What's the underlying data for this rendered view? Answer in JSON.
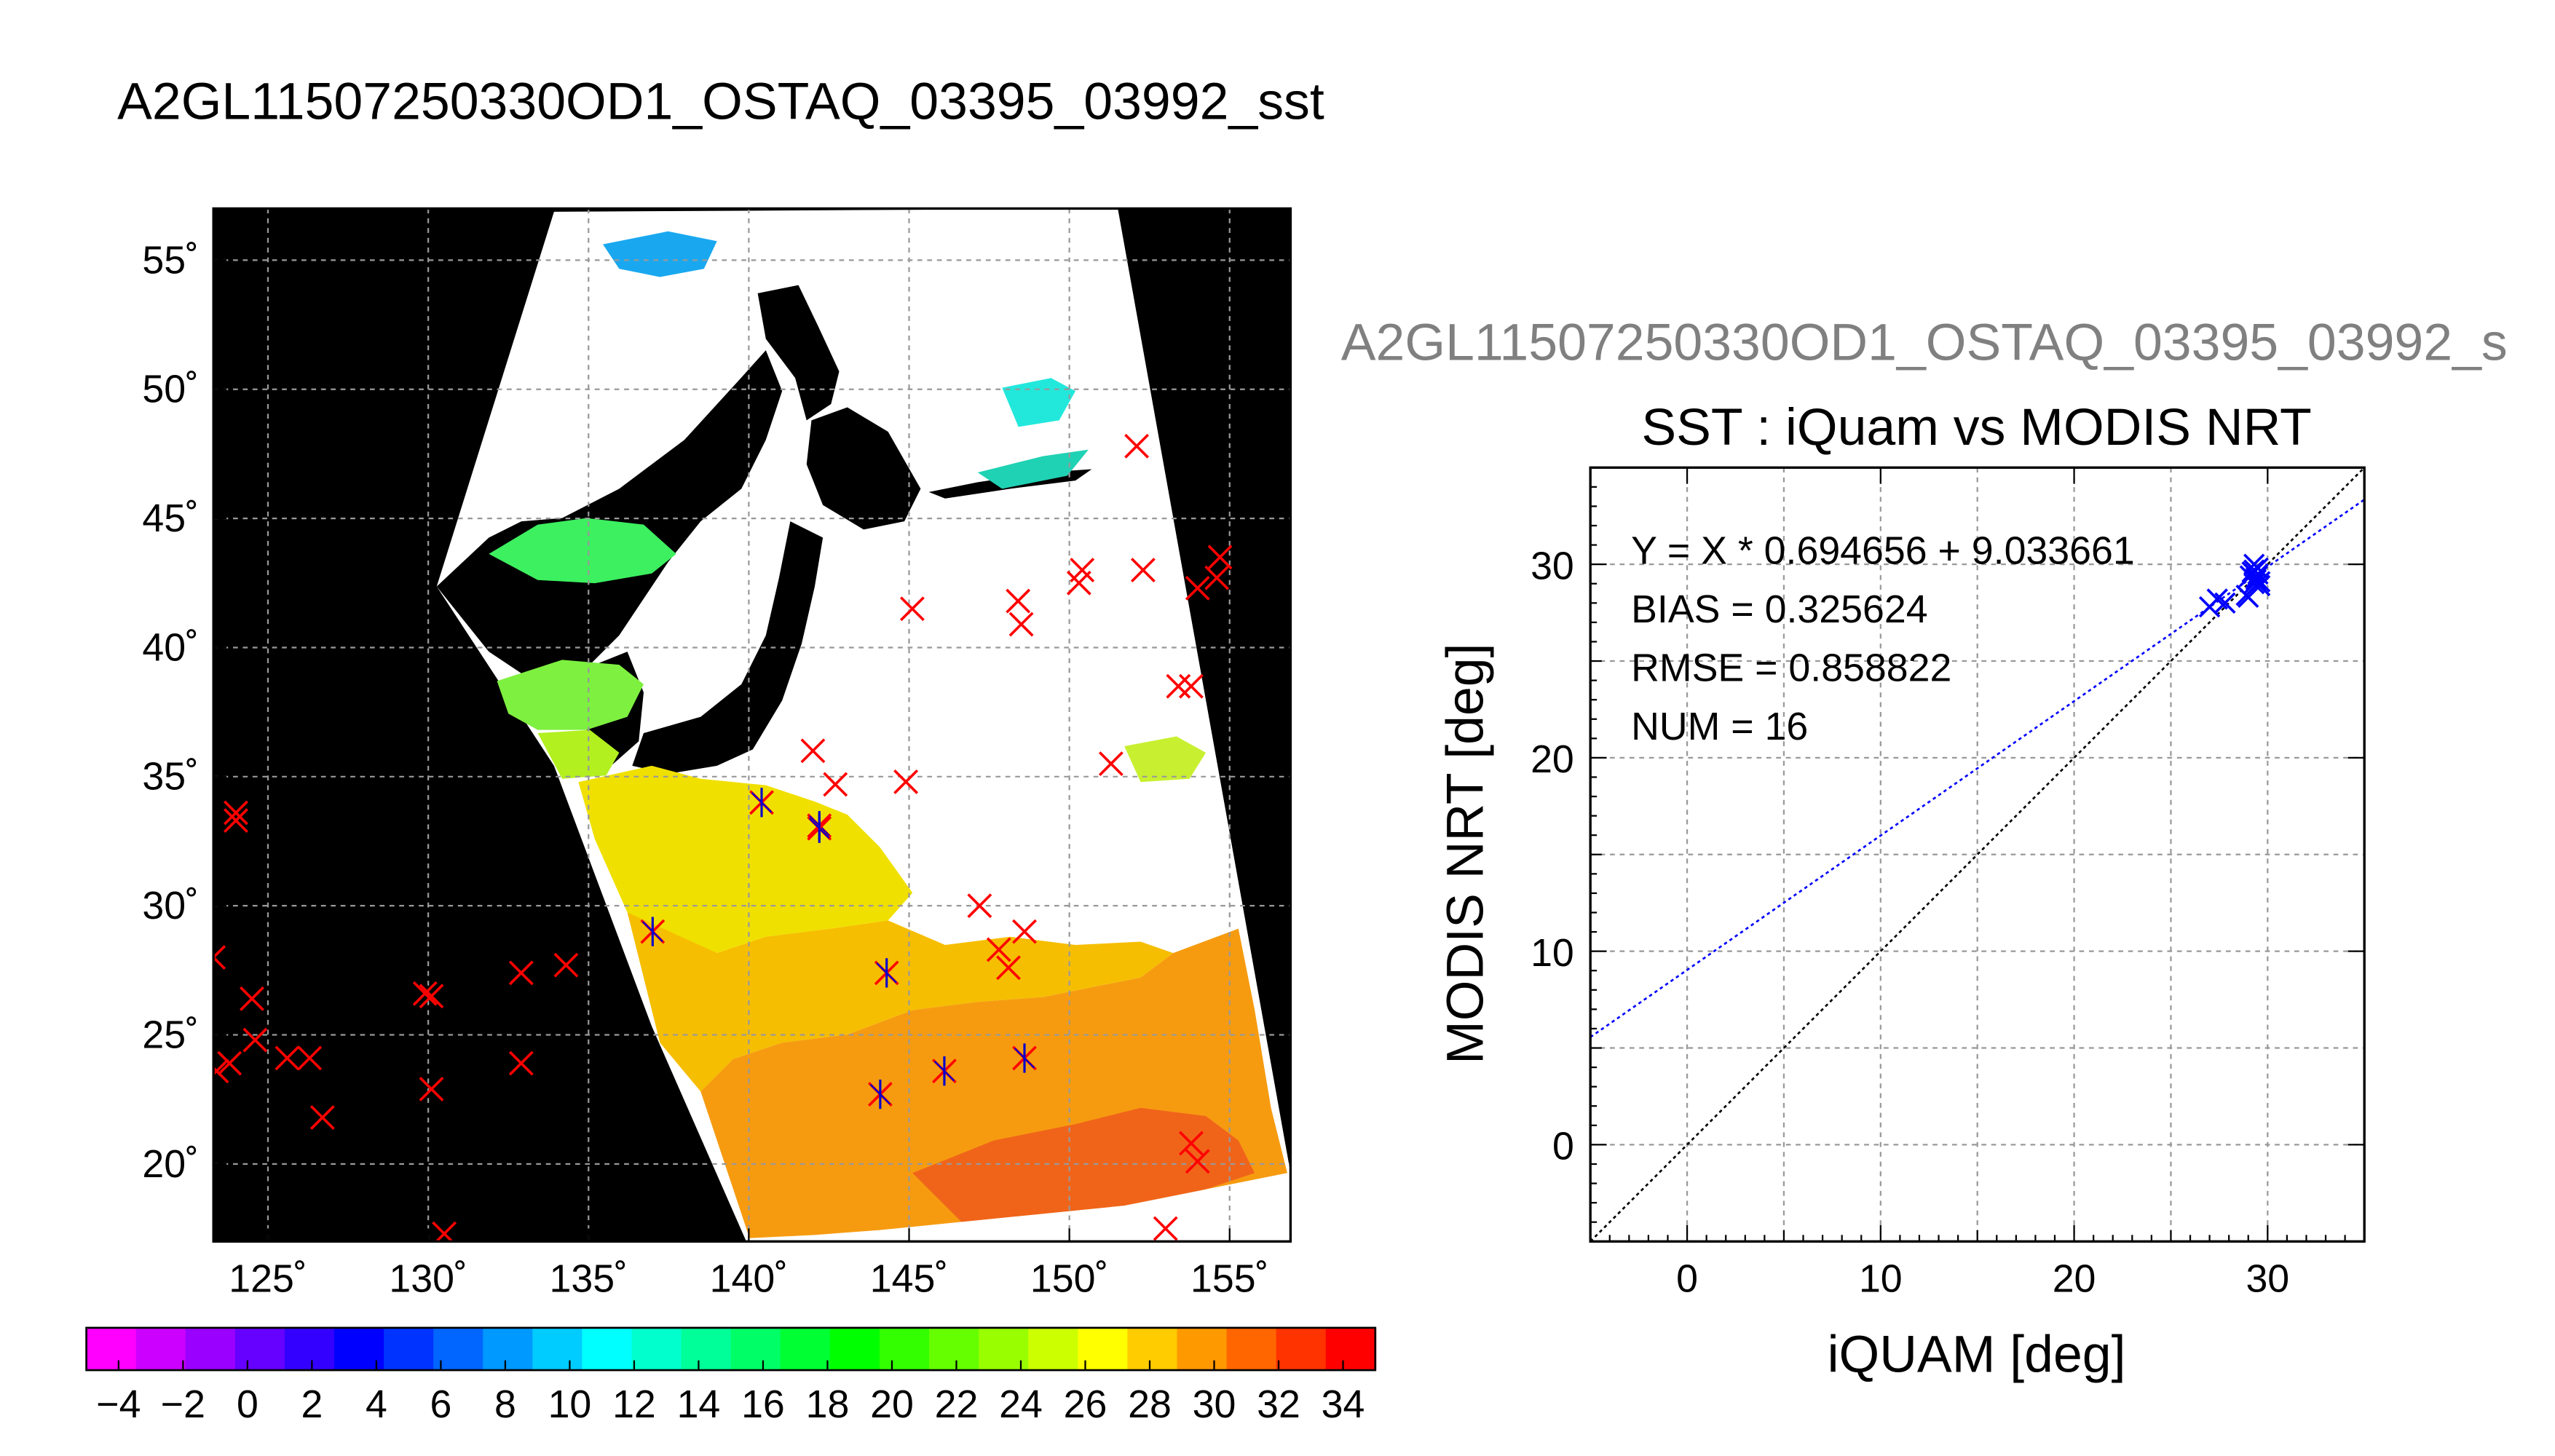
{
  "main_title": "A2GL11507250330OD1_OSTAQ_03395_03992_sst",
  "sub_title": "A2GL11507250330OD1_OSTAQ_03395_03992_s",
  "chart_data": [
    {
      "type": "map",
      "lon_ticks": [
        "125˚",
        "130˚",
        "135˚",
        "140˚",
        "145˚",
        "150˚",
        "155˚"
      ],
      "lon_values": [
        125,
        130,
        135,
        140,
        145,
        150,
        155
      ],
      "lat_ticks": [
        "55˚",
        "50˚",
        "45˚",
        "40˚",
        "35˚",
        "30˚",
        "25˚",
        "20˚"
      ],
      "lat_values": [
        55,
        50,
        45,
        40,
        35,
        30,
        25,
        20
      ],
      "xlim": [
        123.3,
        156.9
      ],
      "ylim": [
        17.0,
        57.0
      ],
      "land_color": "#000000",
      "no_data_color": "#ffffff",
      "grid": true,
      "colorbar": {
        "ticks": [
          "−4",
          "−2",
          "0",
          "2",
          "4",
          "6",
          "8",
          "10",
          "12",
          "14",
          "16",
          "18",
          "20",
          "22",
          "24",
          "26",
          "28",
          "30",
          "32",
          "34"
        ],
        "tick_values": [
          -4,
          -2,
          0,
          2,
          4,
          6,
          8,
          10,
          12,
          14,
          16,
          18,
          20,
          22,
          24,
          26,
          28,
          30,
          32,
          34
        ],
        "range": [
          -5,
          35
        ],
        "colors": [
          "#ff00ff",
          "#cc00ff",
          "#9900ff",
          "#6600ff",
          "#3300ff",
          "#0000ff",
          "#0033ff",
          "#0066ff",
          "#0099ff",
          "#00ccff",
          "#00ffff",
          "#00ffcc",
          "#00ff99",
          "#00ff66",
          "#00ff33",
          "#00ff00",
          "#33ff00",
          "#66ff00",
          "#99ff00",
          "#ccff00",
          "#ffff00",
          "#ffcc00",
          "#ff9900",
          "#ff6600",
          "#ff3300",
          "#ff0000"
        ]
      },
      "buoys_red": [
        [
          123.3,
          28.0
        ],
        [
          123.4,
          23.6
        ],
        [
          123.8,
          23.9
        ],
        [
          124.0,
          33.6
        ],
        [
          124.0,
          33.3
        ],
        [
          124.6,
          24.8
        ],
        [
          124.5,
          26.4
        ],
        [
          125.6,
          24.1
        ],
        [
          126.3,
          24.1
        ],
        [
          126.7,
          21.8
        ],
        [
          129.9,
          26.6
        ],
        [
          130.1,
          26.5
        ],
        [
          130.1,
          22.9
        ],
        [
          130.5,
          17.3
        ],
        [
          132.9,
          27.4
        ],
        [
          132.9,
          23.9
        ],
        [
          134.3,
          27.7
        ],
        [
          142.0,
          36.0
        ],
        [
          142.7,
          34.7
        ],
        [
          144.9,
          34.8
        ],
        [
          145.1,
          41.5
        ],
        [
          147.2,
          30.0
        ],
        [
          147.8,
          28.3
        ],
        [
          148.1,
          27.6
        ],
        [
          148.4,
          41.8
        ],
        [
          148.5,
          40.9
        ],
        [
          148.6,
          29.0
        ],
        [
          150.3,
          42.5
        ],
        [
          150.4,
          43.0
        ],
        [
          151.3,
          35.5
        ],
        [
          152.1,
          47.8
        ],
        [
          152.3,
          43.0
        ],
        [
          153.0,
          17.5
        ],
        [
          153.4,
          38.5
        ],
        [
          153.8,
          38.5
        ],
        [
          153.8,
          20.8
        ],
        [
          154.0,
          20.1
        ],
        [
          154.0,
          42.3
        ],
        [
          154.6,
          42.7
        ],
        [
          154.7,
          43.5
        ]
      ],
      "buoys_matched": [
        [
          137.0,
          29.0
        ],
        [
          140.4,
          34.0
        ],
        [
          142.2,
          33.1
        ],
        [
          142.2,
          33.0
        ],
        [
          144.3,
          27.4
        ],
        [
          144.1,
          22.7
        ],
        [
          146.1,
          23.6
        ],
        [
          148.6,
          24.1
        ]
      ]
    },
    {
      "type": "scatter",
      "title": "SST : iQuam vs MODIS NRT",
      "xlabel": "iQUAM [deg]",
      "ylabel": "MODIS NRT [deg]",
      "xlim": [
        -5,
        35
      ],
      "ylim": [
        -5,
        35
      ],
      "x_ticks": [
        "0",
        "10",
        "20",
        "30"
      ],
      "x_tick_values": [
        0,
        10,
        20,
        30
      ],
      "y_ticks": [
        "0",
        "10",
        "20",
        "30"
      ],
      "y_tick_values": [
        0,
        10,
        20,
        30
      ],
      "grid": true,
      "stats": [
        "Y = X * 0.694656 + 9.033661",
        "BIAS = 0.325624",
        "RMSE = 0.858822",
        "NUM = 16"
      ],
      "fit": {
        "slope": 0.694656,
        "intercept": 9.033661,
        "color": "#0000ff"
      },
      "identity_line_color": "#000000",
      "points": {
        "x": [
          27.0,
          27.4,
          29.0,
          29.3,
          29.4,
          29.5,
          29.6,
          29.3,
          29.5,
          29.2,
          29.1,
          29.6,
          29.4,
          29.3,
          28.9,
          27.8
        ],
        "y": [
          27.8,
          28.2,
          28.3,
          29.0,
          29.2,
          29.5,
          29.1,
          30.0,
          29.8,
          29.6,
          29.4,
          28.9,
          29.3,
          29.7,
          28.4,
          28.0
        ],
        "color": "#0000ff",
        "marker": "x"
      }
    }
  ]
}
